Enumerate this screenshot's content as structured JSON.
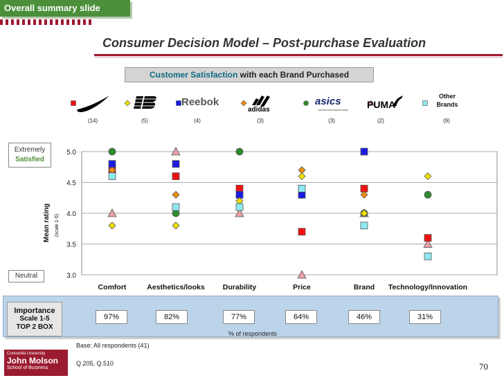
{
  "tag": "Overall summary slide",
  "title": "Consumer Decision Model – Post-purchase Evaluation",
  "subtitle_highlight": "Customer Satisfaction",
  "subtitle_rest": " with each Brand Purchased",
  "brands": [
    {
      "name": "Nike",
      "color": "#ee1111",
      "marker": "square",
      "count": "(14)"
    },
    {
      "name": "New Balance",
      "color": "#f0e000",
      "marker": "diamond",
      "count": "(5)"
    },
    {
      "name": "Reebok",
      "color": "#1a1ae0",
      "marker": "square",
      "count": "(4)"
    },
    {
      "name": "adidas",
      "color": "#f08c10",
      "marker": "diamond",
      "count": "(3)"
    },
    {
      "name": "asics",
      "color": "#2e8b2e",
      "marker": "circle",
      "count": "(3)"
    },
    {
      "name": "PUMA",
      "color": "#e9a0a8",
      "marker": "triangle",
      "count": "(2)"
    },
    {
      "name": "Other Brands",
      "color": "#8ee8f0",
      "marker": "square",
      "count": "(9)"
    }
  ],
  "other_label_1": "Other",
  "other_label_2": "Brands",
  "extreme_1": "Extremely",
  "extreme_2": "Satisfied",
  "neutral": "Neutral",
  "ylabel": "Mean rating",
  "ylabel_sub": "(scale 1-5)",
  "importance_1": "Importance",
  "importance_2": "Scale 1-5",
  "importance_3": "TOP 2 BOX",
  "pct_of_respondents": "% of respondents",
  "base": "Base: All respondents (41)",
  "qref": "Q.205, Q.510",
  "page_number": "70",
  "logo_1": "Concordia University",
  "logo_2": "John Molson",
  "logo_3": "School of Business",
  "chart_data": {
    "type": "scatter",
    "categories": [
      "Comfort",
      "Aesthetics/looks",
      "Durability",
      "Price",
      "Brand",
      "Technology/Innovation"
    ],
    "importance": [
      "97%",
      "82%",
      "77%",
      "64%",
      "46%",
      "31%"
    ],
    "ylim": [
      3.0,
      5.0
    ],
    "yticks": [
      "3.0",
      "3.5",
      "4.0",
      "4.5",
      "5.0"
    ],
    "grid": true,
    "series": [
      {
        "name": "Nike",
        "values": [
          4.7,
          4.6,
          4.4,
          3.7,
          4.4,
          3.6
        ]
      },
      {
        "name": "New Balance",
        "values": [
          3.8,
          3.8,
          4.2,
          4.6,
          4.0,
          4.6
        ]
      },
      {
        "name": "Reebok",
        "values": [
          4.8,
          4.8,
          4.3,
          4.3,
          5.0,
          null
        ]
      },
      {
        "name": "adidas",
        "values": [
          4.7,
          4.3,
          4.3,
          4.7,
          4.3,
          null
        ]
      },
      {
        "name": "asics",
        "values": [
          5.0,
          4.0,
          5.0,
          4.3,
          4.0,
          4.3
        ]
      },
      {
        "name": "PUMA",
        "values": [
          4.0,
          5.0,
          4.0,
          3.0,
          4.0,
          3.5
        ]
      },
      {
        "name": "Other Brands",
        "values": [
          4.6,
          4.1,
          4.1,
          4.4,
          3.8,
          3.3
        ]
      }
    ]
  }
}
